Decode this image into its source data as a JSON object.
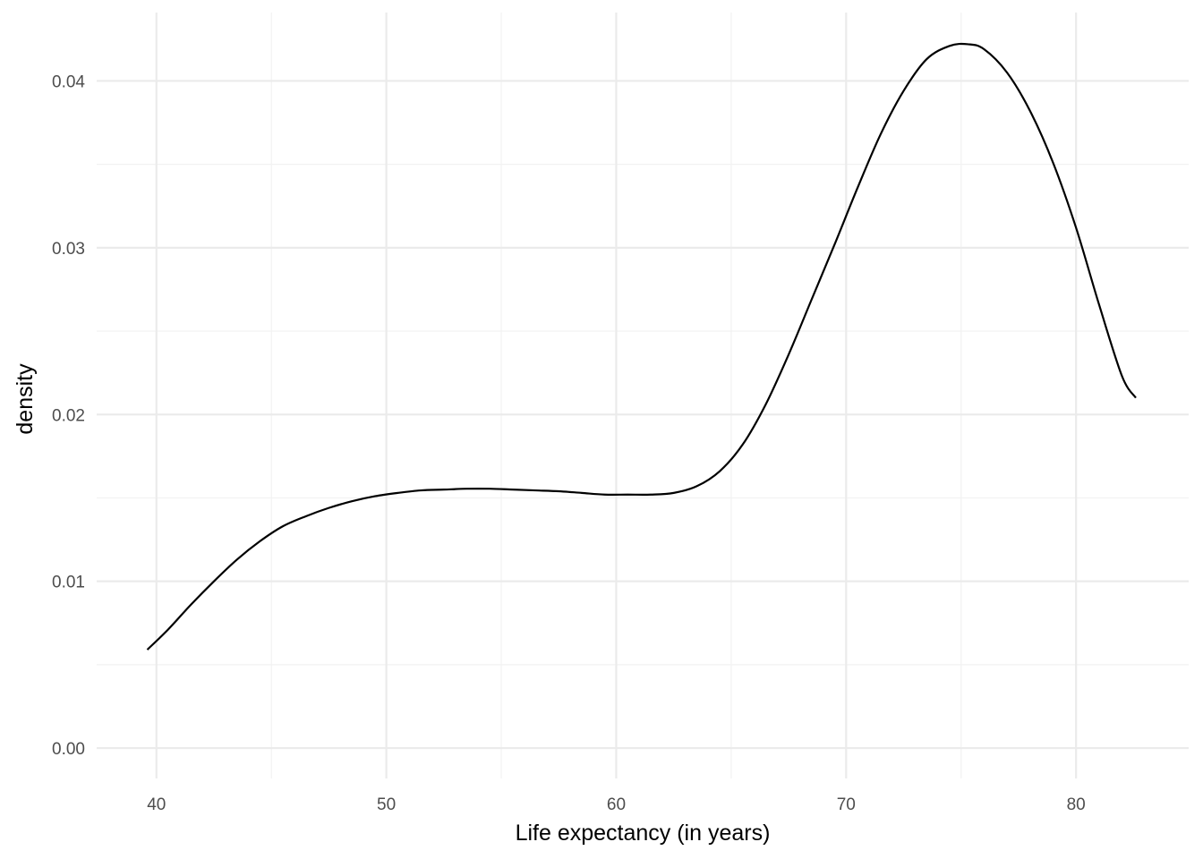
{
  "chart_data": {
    "type": "line",
    "title": "",
    "xlabel": "Life expectancy (in years)",
    "ylabel": "density",
    "xlim": [
      37.4,
      84.9
    ],
    "ylim": [
      -0.00182,
      0.0441
    ],
    "x_ticks": [
      40,
      50,
      60,
      70,
      80
    ],
    "x_minor_ticks": [
      45,
      55,
      65,
      75
    ],
    "y_ticks": [
      0.0,
      0.01,
      0.02,
      0.03,
      0.04
    ],
    "y_tick_labels": [
      "0.00",
      "0.01",
      "0.02",
      "0.03",
      "0.04"
    ],
    "y_minor_ticks": [
      0.005,
      0.015,
      0.025,
      0.035
    ],
    "grid": true,
    "legend": "none",
    "colors": {
      "line": "#000000",
      "grid_major": "#ebebeb",
      "grid_minor": "#f2f2f2",
      "background": "#ffffff"
    },
    "series": [
      {
        "x": [
          39.6,
          40.5,
          41.5,
          42.5,
          43.5,
          44.5,
          45.5,
          46.5,
          47.5,
          48.5,
          49.5,
          50.5,
          51.5,
          52.5,
          53.5,
          54.5,
          55.5,
          56.5,
          57.5,
          58.5,
          59.5,
          60.5,
          61.5,
          62.5,
          63.5,
          64.5,
          65.5,
          66.5,
          67.5,
          68.5,
          69.5,
          70.5,
          71.5,
          72.5,
          73.5,
          74.5,
          75.3,
          76.0,
          77.0,
          78.0,
          79.0,
          80.0,
          81.0,
          82.0,
          82.6
        ],
        "values": [
          0.0059,
          0.0071,
          0.0086,
          0.01,
          0.0113,
          0.0124,
          0.0133,
          0.0139,
          0.0144,
          0.0148,
          0.0151,
          0.0153,
          0.01545,
          0.0155,
          0.01555,
          0.01555,
          0.0155,
          0.01545,
          0.0154,
          0.0153,
          0.0152,
          0.0152,
          0.0152,
          0.0153,
          0.0157,
          0.0166,
          0.0182,
          0.0206,
          0.0236,
          0.0269,
          0.0302,
          0.0336,
          0.0368,
          0.0394,
          0.0413,
          0.0421,
          0.0422,
          0.0419,
          0.0405,
          0.0382,
          0.0351,
          0.0312,
          0.0266,
          0.0223,
          0.021
        ]
      }
    ]
  }
}
